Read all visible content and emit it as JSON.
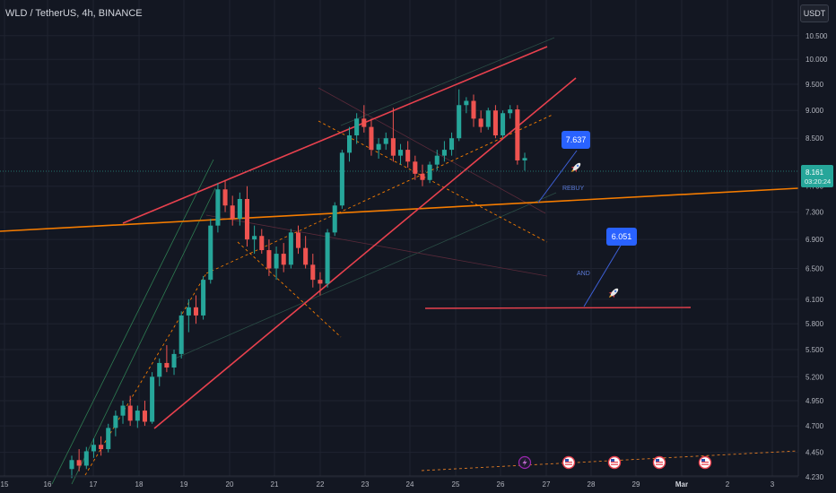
{
  "header": {
    "symbol_title": "WLD / TetherUS, 4h, BINANCE",
    "currency_button": "USDT"
  },
  "chart_data": {
    "type": "candlestick",
    "title": "WLD / TetherUS, 4h, BINANCE",
    "currency": "USDT",
    "x_tick_labels": [
      "15",
      "16",
      "17",
      "18",
      "19",
      "20",
      "21",
      "22",
      "23",
      "24",
      "25",
      "26",
      "27",
      "28",
      "29",
      "Mar",
      "2",
      "3"
    ],
    "y_tick_labels": [
      10.5,
      10.0,
      9.5,
      9.0,
      8.5,
      7.7,
      7.3,
      6.9,
      6.5,
      6.1,
      5.8,
      5.5,
      5.2,
      4.95,
      4.7,
      4.45,
      4.23
    ],
    "y_range": [
      4.2,
      11.3
    ],
    "y_scale": "log",
    "last_price": 8.161,
    "countdown": "03:20:24",
    "candles_approx": [
      {
        "o": 4.3,
        "h": 4.42,
        "l": 4.22,
        "c": 4.38
      },
      {
        "o": 4.38,
        "h": 4.48,
        "l": 4.28,
        "c": 4.33
      },
      {
        "o": 4.33,
        "h": 4.5,
        "l": 4.3,
        "c": 4.46
      },
      {
        "o": 4.46,
        "h": 4.58,
        "l": 4.4,
        "c": 4.52
      },
      {
        "o": 4.52,
        "h": 4.6,
        "l": 4.42,
        "c": 4.48
      },
      {
        "o": 4.48,
        "h": 4.72,
        "l": 4.45,
        "c": 4.68
      },
      {
        "o": 4.68,
        "h": 4.85,
        "l": 4.6,
        "c": 4.8
      },
      {
        "o": 4.8,
        "h": 4.95,
        "l": 4.72,
        "c": 4.9
      },
      {
        "o": 4.9,
        "h": 5.0,
        "l": 4.7,
        "c": 4.75
      },
      {
        "o": 4.75,
        "h": 4.9,
        "l": 4.68,
        "c": 4.85
      },
      {
        "o": 4.85,
        "h": 4.95,
        "l": 4.7,
        "c": 4.74
      },
      {
        "o": 4.74,
        "h": 5.25,
        "l": 4.72,
        "c": 5.2
      },
      {
        "o": 5.2,
        "h": 5.4,
        "l": 5.1,
        "c": 5.35
      },
      {
        "o": 5.35,
        "h": 5.55,
        "l": 5.25,
        "c": 5.3
      },
      {
        "o": 5.3,
        "h": 5.5,
        "l": 5.22,
        "c": 5.45
      },
      {
        "o": 5.45,
        "h": 5.95,
        "l": 5.4,
        "c": 5.9
      },
      {
        "o": 5.9,
        "h": 6.1,
        "l": 5.7,
        "c": 6.0
      },
      {
        "o": 6.0,
        "h": 6.15,
        "l": 5.8,
        "c": 5.9
      },
      {
        "o": 5.9,
        "h": 6.4,
        "l": 5.85,
        "c": 6.35
      },
      {
        "o": 6.35,
        "h": 7.2,
        "l": 6.3,
        "c": 7.1
      },
      {
        "o": 7.1,
        "h": 7.75,
        "l": 7.0,
        "c": 7.65
      },
      {
        "o": 7.65,
        "h": 7.8,
        "l": 7.3,
        "c": 7.4
      },
      {
        "o": 7.4,
        "h": 7.55,
        "l": 7.1,
        "c": 7.2
      },
      {
        "o": 7.2,
        "h": 7.6,
        "l": 7.1,
        "c": 7.5
      },
      {
        "o": 7.5,
        "h": 7.7,
        "l": 6.8,
        "c": 6.9
      },
      {
        "o": 6.9,
        "h": 7.1,
        "l": 6.7,
        "c": 6.95
      },
      {
        "o": 6.95,
        "h": 7.05,
        "l": 6.7,
        "c": 6.75
      },
      {
        "o": 6.75,
        "h": 6.9,
        "l": 6.4,
        "c": 6.5
      },
      {
        "o": 6.5,
        "h": 6.8,
        "l": 6.35,
        "c": 6.7
      },
      {
        "o": 6.7,
        "h": 6.85,
        "l": 6.45,
        "c": 6.55
      },
      {
        "o": 6.55,
        "h": 7.05,
        "l": 6.5,
        "c": 7.0
      },
      {
        "o": 7.0,
        "h": 7.1,
        "l": 6.7,
        "c": 6.78
      },
      {
        "o": 6.78,
        "h": 6.95,
        "l": 6.5,
        "c": 6.55
      },
      {
        "o": 6.55,
        "h": 6.7,
        "l": 6.25,
        "c": 6.35
      },
      {
        "o": 6.35,
        "h": 6.45,
        "l": 6.15,
        "c": 6.3
      },
      {
        "o": 6.3,
        "h": 7.05,
        "l": 6.25,
        "c": 7.0
      },
      {
        "o": 7.0,
        "h": 7.45,
        "l": 6.95,
        "c": 7.4
      },
      {
        "o": 7.4,
        "h": 8.3,
        "l": 7.35,
        "c": 8.25
      },
      {
        "o": 8.25,
        "h": 8.7,
        "l": 8.1,
        "c": 8.55
      },
      {
        "o": 8.55,
        "h": 8.95,
        "l": 8.4,
        "c": 8.85
      },
      {
        "o": 8.85,
        "h": 9.1,
        "l": 8.6,
        "c": 8.7
      },
      {
        "o": 8.7,
        "h": 8.85,
        "l": 8.2,
        "c": 8.3
      },
      {
        "o": 8.3,
        "h": 8.5,
        "l": 8.15,
        "c": 8.4
      },
      {
        "o": 8.4,
        "h": 8.6,
        "l": 8.3,
        "c": 8.5
      },
      {
        "o": 8.5,
        "h": 9.05,
        "l": 8.1,
        "c": 8.2
      },
      {
        "o": 8.2,
        "h": 8.4,
        "l": 8.05,
        "c": 8.3
      },
      {
        "o": 8.3,
        "h": 8.45,
        "l": 8.0,
        "c": 8.1
      },
      {
        "o": 8.1,
        "h": 8.2,
        "l": 7.8,
        "c": 7.9
      },
      {
        "o": 7.9,
        "h": 8.05,
        "l": 7.7,
        "c": 7.8
      },
      {
        "o": 7.8,
        "h": 8.1,
        "l": 7.75,
        "c": 8.05
      },
      {
        "o": 8.05,
        "h": 8.3,
        "l": 7.95,
        "c": 8.2
      },
      {
        "o": 8.2,
        "h": 8.45,
        "l": 8.1,
        "c": 8.3
      },
      {
        "o": 8.3,
        "h": 8.6,
        "l": 8.2,
        "c": 8.5
      },
      {
        "o": 8.5,
        "h": 9.4,
        "l": 8.45,
        "c": 9.1
      },
      {
        "o": 9.1,
        "h": 9.25,
        "l": 8.95,
        "c": 9.18
      },
      {
        "o": 9.18,
        "h": 9.3,
        "l": 8.7,
        "c": 8.85
      },
      {
        "o": 8.85,
        "h": 9.0,
        "l": 8.6,
        "c": 8.7
      },
      {
        "o": 8.7,
        "h": 9.05,
        "l": 8.65,
        "c": 9.0
      },
      {
        "o": 9.0,
        "h": 9.1,
        "l": 8.5,
        "c": 8.55
      },
      {
        "o": 8.55,
        "h": 9.0,
        "l": 8.5,
        "c": 8.95
      },
      {
        "o": 8.95,
        "h": 9.1,
        "l": 8.85,
        "c": 9.02
      },
      {
        "o": 9.02,
        "h": 9.1,
        "l": 8.05,
        "c": 8.12
      },
      {
        "o": 8.12,
        "h": 8.25,
        "l": 7.95,
        "c": 8.16
      }
    ],
    "annotations": {
      "target_1": {
        "value_label": "7.637",
        "text": "REBUY"
      },
      "target_2": {
        "value_label": "6.051",
        "text": "AND"
      }
    },
    "colors": {
      "background": "#131722",
      "bullish": "#26a69a",
      "bearish": "#ef5350",
      "trend_red": "#e8414e",
      "trend_orange": "#f57c00",
      "badge_blue": "#2962ff"
    },
    "grid": true
  }
}
